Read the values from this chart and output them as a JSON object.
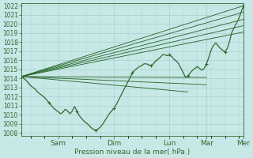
{
  "xlabel": "Pression niveau de la mer( hPa )",
  "bg_color": "#c8e8e8",
  "grid_color": "#a8d0cc",
  "line_color": "#2d6a2d",
  "ylim": [
    1008,
    1022
  ],
  "yticks": [
    1008,
    1009,
    1010,
    1011,
    1012,
    1013,
    1014,
    1015,
    1016,
    1017,
    1018,
    1019,
    1020,
    1021,
    1022
  ],
  "xlim": [
    0,
    96
  ],
  "xtick_positions": [
    16,
    40,
    64,
    80,
    96
  ],
  "xtick_labels": [
    "Sam",
    "Dim",
    "Lun",
    "Mar",
    "Mer"
  ],
  "main_x": [
    0,
    1,
    2,
    3,
    4,
    5,
    6,
    7,
    8,
    9,
    10,
    11,
    12,
    13,
    14,
    15,
    16,
    17,
    18,
    19,
    20,
    21,
    22,
    23,
    24,
    25,
    26,
    27,
    28,
    29,
    30,
    31,
    32,
    33,
    34,
    35,
    36,
    37,
    38,
    39,
    40,
    41,
    42,
    43,
    44,
    45,
    46,
    47,
    48,
    49,
    50,
    51,
    52,
    53,
    54,
    55,
    56,
    57,
    58,
    59,
    60,
    61,
    62,
    63,
    64,
    65,
    66,
    67,
    68,
    69,
    70,
    71,
    72,
    73,
    74,
    75,
    76,
    77,
    78,
    79,
    80,
    81,
    82,
    83,
    84,
    85,
    86,
    87,
    88,
    89,
    90,
    91,
    92,
    93,
    94,
    95,
    96
  ],
  "main_y": [
    1014.2,
    1014.0,
    1013.8,
    1013.5,
    1013.2,
    1013.0,
    1012.8,
    1012.5,
    1012.3,
    1012.1,
    1011.9,
    1011.6,
    1011.3,
    1011.0,
    1010.7,
    1010.5,
    1010.3,
    1010.1,
    1010.3,
    1010.6,
    1010.4,
    1010.1,
    1010.4,
    1010.9,
    1010.4,
    1009.9,
    1009.6,
    1009.3,
    1009.1,
    1008.9,
    1008.6,
    1008.4,
    1008.3,
    1008.4,
    1008.6,
    1008.9,
    1009.3,
    1009.7,
    1010.1,
    1010.4,
    1010.7,
    1011.1,
    1011.6,
    1012.1,
    1012.6,
    1013.1,
    1013.6,
    1014.1,
    1014.6,
    1014.9,
    1015.1,
    1015.3,
    1015.4,
    1015.6,
    1015.6,
    1015.5,
    1015.4,
    1015.6,
    1015.9,
    1016.1,
    1016.3,
    1016.6,
    1016.6,
    1016.5,
    1016.6,
    1016.4,
    1016.1,
    1015.9,
    1015.6,
    1015.1,
    1014.6,
    1014.1,
    1014.3,
    1014.6,
    1014.9,
    1015.1,
    1015.3,
    1015.1,
    1014.9,
    1015.1,
    1015.6,
    1016.3,
    1017.1,
    1017.6,
    1017.9,
    1017.6,
    1017.3,
    1017.1,
    1016.9,
    1017.3,
    1018.1,
    1019.1,
    1019.6,
    1020.1,
    1020.6,
    1021.3,
    1022.0
  ],
  "forecast_lines": [
    {
      "x0": 0,
      "y0": 1014.2,
      "x1": 96,
      "y1": 1022.0
    },
    {
      "x0": 0,
      "y0": 1014.2,
      "x1": 96,
      "y1": 1021.3
    },
    {
      "x0": 0,
      "y0": 1014.2,
      "x1": 96,
      "y1": 1020.5
    },
    {
      "x0": 0,
      "y0": 1014.2,
      "x1": 96,
      "y1": 1019.8
    },
    {
      "x0": 0,
      "y0": 1014.2,
      "x1": 96,
      "y1": 1019.1
    },
    {
      "x0": 0,
      "y0": 1014.2,
      "x1": 80,
      "y1": 1014.1
    },
    {
      "x0": 0,
      "y0": 1014.2,
      "x1": 80,
      "y1": 1013.3
    },
    {
      "x0": 0,
      "y0": 1014.2,
      "x1": 72,
      "y1": 1012.5
    }
  ],
  "marker_positions": [
    0,
    12,
    24,
    32,
    40,
    48,
    56,
    64,
    72,
    80,
    88,
    96
  ]
}
